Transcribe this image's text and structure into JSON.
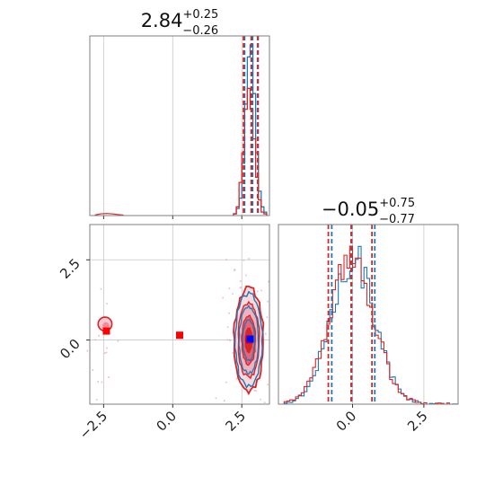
{
  "colors": {
    "blue": "#1f77b4",
    "red": "#d62728",
    "marker_red": "#ff0000",
    "marker_blue": "#0000ff",
    "grid": "#c8c8c8",
    "frame": "#7f7f7f"
  },
  "chart_data": {
    "type": "corner",
    "panels": [
      {
        "id": "p1-marginal",
        "type": "histogram",
        "title": {
          "value": "2.84",
          "plus": "+0.25",
          "minus": "−0.26"
        },
        "xlim": [
          -3.0,
          3.5
        ],
        "grid": true,
        "quantile_lines": {
          "blue": [
            2.6,
            2.89,
            3.07
          ],
          "red": [
            2.56,
            2.84,
            3.09
          ]
        },
        "series": [
          {
            "name": "",
            "color": "blue",
            "bins": [
              2.2,
              2.3,
              2.4,
              2.5,
              2.6,
              2.7,
              2.8,
              2.9,
              3.0,
              3.1,
              3.2,
              3.3,
              3.4
            ],
            "heights": [
              0.01,
              0.04,
              0.1,
              0.3,
              0.64,
              0.91,
              0.98,
              0.7,
              0.36,
              0.14,
              0.05,
              0.02,
              0.0
            ]
          },
          {
            "name": "",
            "color": "red",
            "bins": [
              2.2,
              2.3,
              2.4,
              2.5,
              2.6,
              2.7,
              2.8,
              2.9,
              3.0,
              3.1,
              3.2,
              3.3,
              3.4
            ],
            "heights": [
              0.01,
              0.05,
              0.19,
              0.36,
              0.61,
              0.73,
              0.61,
              0.44,
              0.22,
              0.09,
              0.02,
              0.01,
              0.0
            ]
          }
        ],
        "secondary_mode": {
          "color": "red",
          "x": [
            -2.8,
            -2.6,
            -2.4,
            -2.2,
            -2.0,
            -1.8
          ],
          "heights": [
            0.004,
            0.01,
            0.012,
            0.01,
            0.006,
            0.003
          ]
        }
      },
      {
        "id": "p2-joint",
        "type": "contour",
        "xlim": [
          -3.0,
          3.5
        ],
        "ylim": [
          -2.0,
          3.6
        ],
        "xticks": [
          -2.5,
          0.0,
          2.5
        ],
        "yticks": [
          0.0,
          2.5
        ],
        "xticklabels": [
          "−2.5",
          "0.0",
          "2.5"
        ],
        "yticklabels": [
          "0.0",
          "2.5"
        ],
        "grid": true,
        "main_mode": {
          "center": [
            2.75,
            0.0
          ],
          "sigma_x": 0.25,
          "sigma_y": 0.75
        },
        "secondary_mode": {
          "center": [
            -2.45,
            0.5
          ],
          "radius": 0.25
        },
        "markers": [
          {
            "color": "marker_red",
            "shape": "square",
            "x": -2.4,
            "y": 0.28
          },
          {
            "color": "marker_red",
            "shape": "square",
            "x": 0.25,
            "y": 0.15
          },
          {
            "color": "marker_red",
            "shape": "square",
            "x": 2.75,
            "y": 0.0
          },
          {
            "color": "marker_blue",
            "shape": "square",
            "x": 2.8,
            "y": 0.03
          }
        ]
      },
      {
        "id": "p3-marginal",
        "type": "histogram",
        "title": {
          "value": "−0.05",
          "plus": "+0.75",
          "minus": "−0.77"
        },
        "xlim": [
          -2.6,
          3.7
        ],
        "xticks": [
          0.0,
          2.5
        ],
        "xticklabels": [
          "0.0",
          "2.5"
        ],
        "grid": true,
        "quantile_lines": {
          "blue": [
            -0.73,
            -0.03,
            0.78
          ],
          "red": [
            -0.85,
            -0.05,
            0.68
          ]
        },
        "series": [
          {
            "name": "",
            "color": "blue",
            "center": -0.05,
            "sigma": 0.76,
            "peak": 0.96
          },
          {
            "name": "",
            "color": "red",
            "center": -0.08,
            "sigma": 0.78,
            "peak": 0.93
          }
        ]
      }
    ]
  }
}
